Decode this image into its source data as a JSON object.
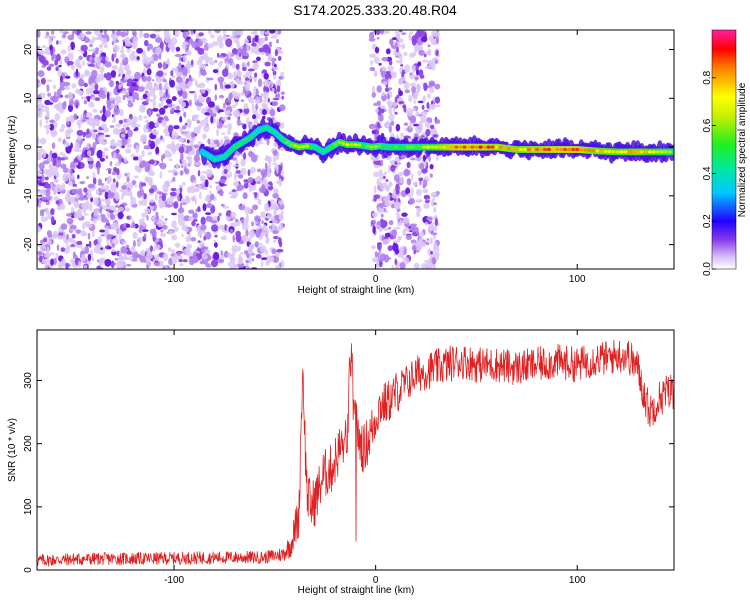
{
  "title": "S174.2025.333.20.48.R04",
  "chart_data": [
    {
      "type": "heatmap",
      "xlabel": "Height of straight line (km)",
      "ylabel": "Frequency (Hz)",
      "xlim": [
        -168,
        148
      ],
      "ylim": [
        -25,
        24
      ],
      "xticks": [
        -100,
        0,
        100
      ],
      "xtick_labels": [
        "-100",
        "0",
        "100"
      ],
      "yticks": [
        -20,
        -10,
        0,
        10,
        20
      ],
      "ytick_labels": [
        "-20",
        "-10",
        "0",
        "10",
        "20"
      ],
      "colorbar": {
        "label": "Normalized spectral amplitude",
        "range": [
          0,
          1
        ],
        "ticks": [
          0.0,
          0.2,
          0.4,
          0.6,
          0.8
        ],
        "tick_labels": [
          "0.0",
          "0.2",
          "0.4",
          "0.6",
          "0.8"
        ]
      },
      "noise_regions_km": [
        [
          -168,
          -46
        ],
        [
          -2,
          31
        ]
      ],
      "ridge": {
        "x": [
          -86,
          -80,
          -75,
          -70,
          -66,
          -62,
          -58,
          -54,
          -50,
          -46,
          -42,
          -38,
          -34,
          -30,
          -26,
          -22,
          -18,
          -14,
          -10,
          -6,
          -2,
          2,
          6,
          10,
          20,
          30,
          40,
          50,
          60,
          70,
          80,
          90,
          100,
          110,
          120,
          130,
          140,
          148
        ],
        "y": [
          -1,
          -2.5,
          -2,
          0,
          1,
          2,
          3.5,
          4,
          3,
          1.5,
          0.5,
          0,
          0.2,
          0,
          -1,
          0,
          1,
          0.5,
          0.5,
          0.3,
          0,
          0.2,
          0,
          0,
          0,
          0,
          0,
          0,
          0,
          -0.5,
          -0.5,
          -0.5,
          -0.5,
          -0.8,
          -1,
          -1,
          -1,
          -1
        ],
        "amplitude": [
          0.35,
          0.45,
          0.45,
          0.55,
          0.55,
          0.5,
          0.45,
          0.5,
          0.45,
          0.55,
          0.6,
          0.75,
          0.7,
          0.5,
          0.45,
          0.55,
          0.65,
          0.7,
          0.75,
          0.55,
          0.65,
          0.6,
          0.55,
          0.55,
          0.6,
          0.75,
          0.9,
          0.9,
          0.85,
          0.8,
          0.85,
          0.9,
          0.9,
          0.8,
          0.75,
          0.8,
          0.7,
          0.6
        ]
      }
    },
    {
      "type": "line",
      "xlabel": "Height of straight line (km)",
      "ylabel": "SNR (10 * v/v)",
      "xlim": [
        -168,
        148
      ],
      "ylim": [
        0,
        380
      ],
      "xticks": [
        -100,
        0,
        100
      ],
      "xtick_labels": [
        "-100",
        "0",
        "100"
      ],
      "yticks": [
        0,
        100,
        200,
        300
      ],
      "ytick_labels": [
        "0",
        "100",
        "200",
        "300"
      ],
      "series": [
        {
          "name": "SNR",
          "color": "#e02020",
          "x": [
            -168,
            -150,
            -130,
            -110,
            -90,
            -70,
            -55,
            -46,
            -42,
            -38,
            -37,
            -36,
            -35,
            -34,
            -32,
            -30,
            -26,
            -22,
            -18,
            -14,
            -13,
            -12,
            -11,
            -10,
            -6,
            -2,
            0,
            2,
            6,
            10,
            15,
            20,
            25,
            30,
            35,
            40,
            45,
            50,
            60,
            70,
            80,
            90,
            100,
            110,
            115,
            120,
            125,
            130,
            133,
            136,
            140,
            144,
            148
          ],
          "y": [
            15,
            17,
            18,
            18,
            19,
            20,
            20,
            25,
            40,
            90,
            240,
            320,
            200,
            120,
            100,
            110,
            150,
            160,
            190,
            210,
            300,
            350,
            260,
            230,
            190,
            220,
            240,
            260,
            265,
            280,
            295,
            310,
            315,
            320,
            325,
            330,
            330,
            325,
            325,
            320,
            325,
            330,
            325,
            335,
            335,
            340,
            340,
            320,
            280,
            250,
            270,
            280,
            285
          ],
          "noise_amplitude": [
            10,
            10,
            10,
            10,
            10,
            10,
            10,
            12,
            20,
            40,
            40,
            40,
            40,
            40,
            40,
            40,
            40,
            40,
            40,
            40,
            40,
            40,
            40,
            40,
            40,
            40,
            35,
            35,
            35,
            35,
            30,
            30,
            30,
            30,
            30,
            28,
            28,
            28,
            28,
            28,
            28,
            28,
            28,
            28,
            28,
            28,
            28,
            30,
            30,
            30,
            30,
            30,
            30
          ]
        }
      ]
    }
  ]
}
